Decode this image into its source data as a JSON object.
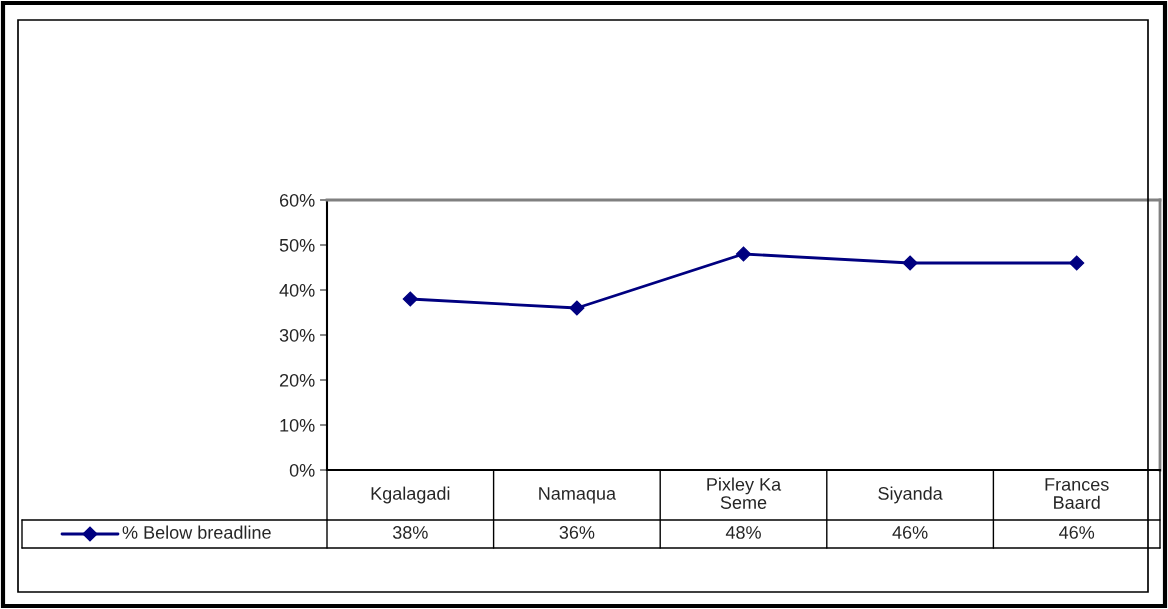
{
  "chart_data": {
    "type": "line",
    "categories": [
      "Kgalagadi",
      "Namaqua",
      "Pixley Ka\nSeme",
      "Siyanda",
      "Frances\nBaard"
    ],
    "series": [
      {
        "name": "% Below breadline",
        "color": "#000080",
        "values": [
          38,
          36,
          48,
          46,
          46
        ]
      }
    ],
    "ylim": [
      0,
      60
    ],
    "yticks": [
      {
        "value": 0,
        "label": "0%"
      },
      {
        "value": 10,
        "label": "10%"
      },
      {
        "value": 20,
        "label": "20%"
      },
      {
        "value": 30,
        "label": "30%"
      },
      {
        "value": 40,
        "label": "40%"
      },
      {
        "value": 50,
        "label": "50%"
      },
      {
        "value": 60,
        "label": "60%"
      }
    ],
    "value_labels": [
      "38%",
      "36%",
      "48%",
      "46%",
      "46%"
    ],
    "marker": "diamond",
    "line_style": "solid",
    "grid": false,
    "legend": "bottom"
  }
}
